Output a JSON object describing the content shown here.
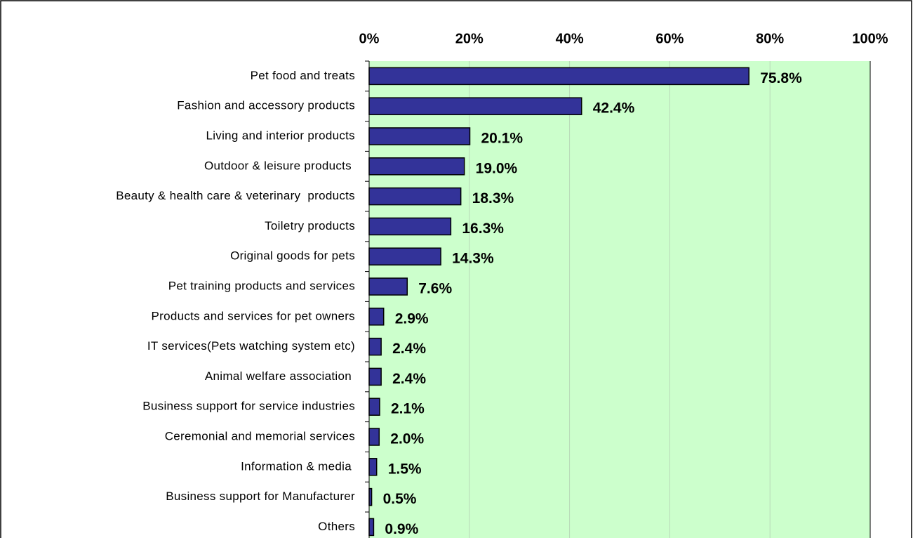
{
  "chart_data": {
    "type": "bar",
    "orientation": "horizontal",
    "categories": [
      "Pet food and treats",
      "Fashion and accessory products",
      "Living and interior products",
      "Outdoor & leisure products ",
      "Beauty & health care & veterinary  products",
      "Toiletry products",
      "Original goods for pets",
      "Pet training products and services",
      "Products and services for pet owners",
      "IT services(Pets watching system etc)",
      "Animal welfare association ",
      "Business support for service industries",
      "Ceremonial and memorial services",
      "Information & media ",
      "Business support for Manufacturer",
      "Others"
    ],
    "values": [
      75.8,
      42.4,
      20.1,
      19.0,
      18.3,
      16.3,
      14.3,
      7.6,
      2.9,
      2.4,
      2.4,
      2.1,
      2.0,
      1.5,
      0.5,
      0.9
    ],
    "value_labels": [
      "75.8%",
      "42.4%",
      "20.1%",
      "19.0%",
      "18.3%",
      "16.3%",
      "14.3%",
      "7.6%",
      "2.9%",
      "2.4%",
      "2.4%",
      "2.1%",
      "2.0%",
      "1.5%",
      "0.5%",
      "0.9%"
    ],
    "color": "#333399",
    "xlim": [
      0,
      100
    ],
    "xticks": [
      {
        "value": 0,
        "label": "0%"
      },
      {
        "value": 20,
        "label": "20%"
      },
      {
        "value": 40,
        "label": "40%"
      },
      {
        "value": 60,
        "label": "60%"
      },
      {
        "value": 80,
        "label": "80%"
      },
      {
        "value": 100,
        "label": "100%"
      }
    ],
    "grid": true
  }
}
